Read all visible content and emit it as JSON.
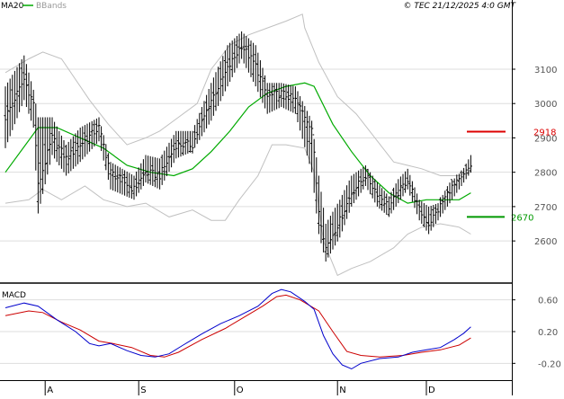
{
  "header": {
    "legend": [
      {
        "label": "MA20",
        "color": "#00aa00"
      },
      {
        "label": "BBands",
        "color": "#bbbbbb"
      }
    ],
    "copyright": "© TEC 21/12/2025 4:0 GMT"
  },
  "colors": {
    "price_bars": "#000000",
    "ma20": "#00aa00",
    "bbands": "#c0c0c0",
    "grid": "#dddddd",
    "resistance": "#dd0000",
    "support": "#009900",
    "macd_line": "#0000cc",
    "macd_signal": "#cc0000"
  },
  "chart_data": [
    {
      "type": "ohlc",
      "ylim": [
        2480,
        3270
      ],
      "yticks": [
        2600,
        2700,
        2800,
        2900,
        3000,
        3100
      ],
      "ytick_labels": [
        "2600",
        "2700",
        "2800",
        "2900",
        "3000",
        "3100"
      ],
      "grid": true,
      "series": [
        {
          "name": "MA20"
        },
        {
          "name": "BBands"
        }
      ],
      "levels": [
        {
          "value": 2918,
          "label": "2918",
          "kind": "resistance"
        },
        {
          "value": 2670,
          "label": "2670",
          "kind": "support"
        }
      ],
      "anchors": [
        [
          0,
          2960,
          3050,
          2870
        ],
        [
          8,
          3070,
          3140,
          3010
        ],
        [
          12,
          3000,
          3040,
          2930
        ],
        [
          14,
          2760,
          2960,
          2680
        ],
        [
          20,
          2900,
          2960,
          2850
        ],
        [
          26,
          2840,
          2880,
          2790
        ],
        [
          32,
          2880,
          2930,
          2830
        ],
        [
          40,
          2930,
          2960,
          2890
        ],
        [
          45,
          2800,
          2830,
          2750
        ],
        [
          55,
          2750,
          2790,
          2720
        ],
        [
          60,
          2800,
          2850,
          2770
        ],
        [
          66,
          2790,
          2840,
          2750
        ],
        [
          73,
          2880,
          2920,
          2840
        ],
        [
          80,
          2880,
          2920,
          2860
        ],
        [
          88,
          3010,
          3060,
          2950
        ],
        [
          95,
          3100,
          3170,
          3050
        ],
        [
          101,
          3170,
          3210,
          3130
        ],
        [
          107,
          3110,
          3170,
          3050
        ],
        [
          112,
          3020,
          3060,
          2970
        ],
        [
          118,
          3030,
          3060,
          2990
        ],
        [
          124,
          3010,
          3050,
          2970
        ],
        [
          131,
          2930,
          2950,
          2800
        ],
        [
          134,
          2690,
          2790,
          2620
        ],
        [
          137,
          2580,
          2650,
          2540
        ],
        [
          143,
          2660,
          2720,
          2610
        ],
        [
          148,
          2740,
          2790,
          2700
        ],
        [
          154,
          2790,
          2820,
          2760
        ],
        [
          159,
          2740,
          2770,
          2700
        ],
        [
          164,
          2700,
          2730,
          2670
        ],
        [
          168,
          2740,
          2780,
          2710
        ],
        [
          172,
          2780,
          2810,
          2750
        ],
        [
          177,
          2690,
          2720,
          2660
        ],
        [
          181,
          2650,
          2700,
          2620
        ],
        [
          185,
          2690,
          2710,
          2660
        ],
        [
          190,
          2750,
          2770,
          2710
        ],
        [
          195,
          2780,
          2800,
          2760
        ],
        [
          199,
          2820,
          2850,
          2800
        ]
      ],
      "ma20_points": [
        [
          0,
          2800
        ],
        [
          14,
          2930
        ],
        [
          22,
          2930
        ],
        [
          32,
          2900
        ],
        [
          42,
          2870
        ],
        [
          52,
          2820
        ],
        [
          62,
          2800
        ],
        [
          72,
          2790
        ],
        [
          80,
          2810
        ],
        [
          88,
          2860
        ],
        [
          96,
          2920
        ],
        [
          104,
          2990
        ],
        [
          112,
          3030
        ],
        [
          120,
          3050
        ],
        [
          128,
          3060
        ],
        [
          132,
          3050
        ],
        [
          140,
          2940
        ],
        [
          148,
          2860
        ],
        [
          156,
          2790
        ],
        [
          164,
          2740
        ],
        [
          172,
          2710
        ],
        [
          180,
          2720
        ],
        [
          188,
          2720
        ],
        [
          194,
          2720
        ],
        [
          199,
          2740
        ]
      ],
      "bb_upper_points": [
        [
          0,
          3090
        ],
        [
          10,
          3130
        ],
        [
          16,
          3150
        ],
        [
          24,
          3130
        ],
        [
          36,
          3010
        ],
        [
          44,
          2940
        ],
        [
          52,
          2880
        ],
        [
          60,
          2900
        ],
        [
          66,
          2920
        ],
        [
          74,
          2960
        ],
        [
          82,
          3000
        ],
        [
          88,
          3100
        ],
        [
          96,
          3170
        ],
        [
          104,
          3200
        ],
        [
          112,
          3220
        ],
        [
          120,
          3240
        ],
        [
          127,
          3260
        ],
        [
          128,
          3220
        ],
        [
          134,
          3120
        ],
        [
          142,
          3020
        ],
        [
          150,
          2970
        ],
        [
          158,
          2900
        ],
        [
          166,
          2830
        ],
        [
          172,
          2820
        ],
        [
          178,
          2810
        ],
        [
          186,
          2790
        ],
        [
          194,
          2790
        ],
        [
          199,
          2800
        ]
      ],
      "bb_lower_points": [
        [
          0,
          2710
        ],
        [
          10,
          2720
        ],
        [
          16,
          2750
        ],
        [
          24,
          2720
        ],
        [
          34,
          2760
        ],
        [
          42,
          2720
        ],
        [
          52,
          2700
        ],
        [
          60,
          2710
        ],
        [
          70,
          2670
        ],
        [
          80,
          2690
        ],
        [
          88,
          2660
        ],
        [
          94,
          2660
        ],
        [
          100,
          2720
        ],
        [
          108,
          2790
        ],
        [
          114,
          2880
        ],
        [
          120,
          2880
        ],
        [
          128,
          2870
        ],
        [
          132,
          2800
        ],
        [
          136,
          2600
        ],
        [
          142,
          2500
        ],
        [
          148,
          2520
        ],
        [
          156,
          2540
        ],
        [
          166,
          2580
        ],
        [
          172,
          2620
        ],
        [
          178,
          2640
        ],
        [
          186,
          2650
        ],
        [
          194,
          2640
        ],
        [
          199,
          2620
        ]
      ]
    },
    {
      "type": "line",
      "title": "MACD",
      "ylim": [
        -40,
        80
      ],
      "yticks": [
        60,
        20,
        -20
      ],
      "ytick_labels": [
        "0.60",
        "0.20",
        "-0.20"
      ],
      "series": [
        {
          "points": [
            [
              0,
              50
            ],
            [
              8,
              56
            ],
            [
              14,
              52
            ],
            [
              22,
              35
            ],
            [
              30,
              20
            ],
            [
              36,
              5
            ],
            [
              40,
              2
            ],
            [
              45,
              5
            ],
            [
              52,
              -4
            ],
            [
              58,
              -10
            ],
            [
              64,
              -12
            ],
            [
              70,
              -8
            ],
            [
              76,
              3
            ],
            [
              84,
              17
            ],
            [
              92,
              30
            ],
            [
              100,
              40
            ],
            [
              108,
              52
            ],
            [
              114,
              68
            ],
            [
              118,
              73
            ],
            [
              122,
              70
            ],
            [
              128,
              58
            ],
            [
              132,
              48
            ],
            [
              136,
              15
            ],
            [
              140,
              -8
            ],
            [
              144,
              -22
            ],
            [
              148,
              -27
            ],
            [
              152,
              -20
            ],
            [
              160,
              -14
            ],
            [
              168,
              -12
            ],
            [
              174,
              -6
            ],
            [
              180,
              -3
            ],
            [
              186,
              0
            ],
            [
              192,
              10
            ],
            [
              196,
              18
            ],
            [
              199,
              26
            ]
          ]
        },
        {
          "points": [
            [
              0,
              40
            ],
            [
              10,
              46
            ],
            [
              16,
              44
            ],
            [
              24,
              32
            ],
            [
              32,
              22
            ],
            [
              40,
              8
            ],
            [
              46,
              5
            ],
            [
              54,
              0
            ],
            [
              62,
              -10
            ],
            [
              68,
              -12
            ],
            [
              74,
              -6
            ],
            [
              84,
              10
            ],
            [
              94,
              24
            ],
            [
              102,
              38
            ],
            [
              110,
              52
            ],
            [
              116,
              64
            ],
            [
              120,
              66
            ],
            [
              126,
              60
            ],
            [
              134,
              46
            ],
            [
              140,
              20
            ],
            [
              146,
              -5
            ],
            [
              152,
              -10
            ],
            [
              160,
              -12
            ],
            [
              170,
              -10
            ],
            [
              178,
              -6
            ],
            [
              186,
              -3
            ],
            [
              194,
              3
            ],
            [
              199,
              12
            ]
          ]
        }
      ],
      "xticks": [
        {
          "label": "A",
          "index": 17
        },
        {
          "label": "S",
          "index": 57
        },
        {
          "label": "O",
          "index": 98
        },
        {
          "label": "N",
          "index": 142
        },
        {
          "label": "D",
          "index": 180
        }
      ]
    }
  ]
}
